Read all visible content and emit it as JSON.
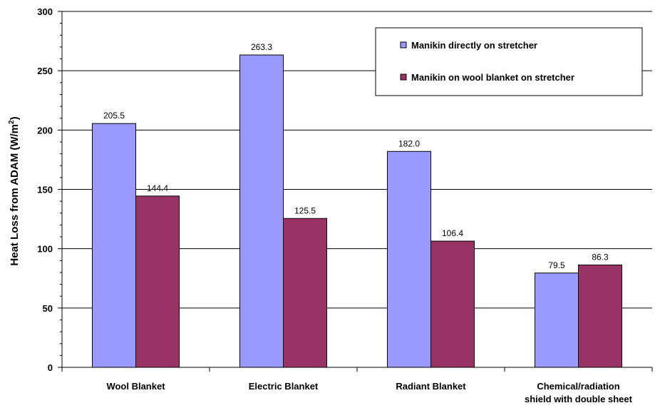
{
  "chart_data": {
    "type": "bar",
    "title": "",
    "xlabel": "",
    "ylabel": "Heat Loss from ADAM (W/m",
    "ylabel_superscript": "2",
    "ylabel_suffix": ")",
    "ylim": [
      0,
      300
    ],
    "yticks": [
      0,
      50,
      100,
      150,
      200,
      250,
      300
    ],
    "grid": true,
    "legend_position": "top-right",
    "categories": [
      [
        "Wool Blanket"
      ],
      [
        "Electric Blanket"
      ],
      [
        "Radiant Blanket"
      ],
      [
        "Chemical/radiation",
        "shield with double sheet"
      ]
    ],
    "series": [
      {
        "name": "Manikin directly on stretcher",
        "color": "#9999ff",
        "values": [
          205.5,
          263.3,
          182.0,
          79.5
        ],
        "labels": [
          "205.5",
          "263.3",
          "182.0",
          "79.5"
        ]
      },
      {
        "name": "Manikin on wool blanket on stretcher",
        "color": "#993366",
        "values": [
          144.4,
          125.5,
          106.4,
          86.3
        ],
        "labels": [
          "144.4",
          "125.5",
          "106.4",
          "86.3"
        ]
      }
    ]
  }
}
